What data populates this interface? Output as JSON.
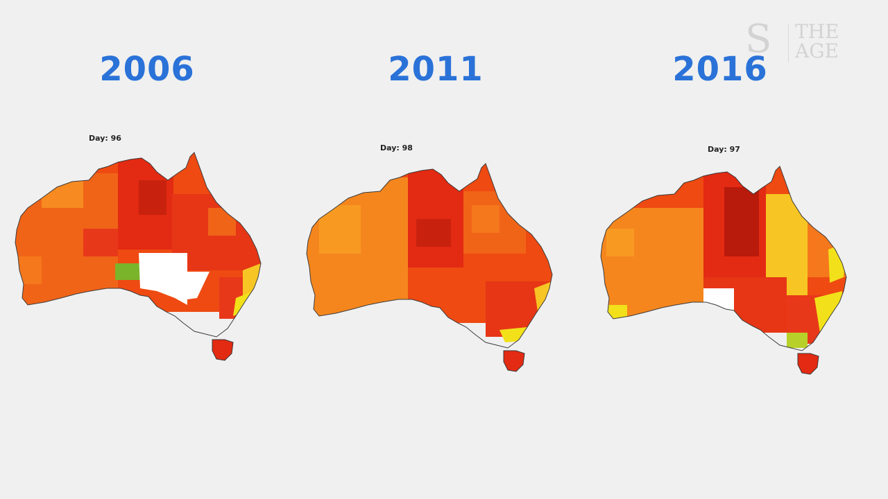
{
  "logo": {
    "mark": "S",
    "text": "THE AGE"
  },
  "panels": [
    {
      "year": "2006",
      "day_label": "Day: 96"
    },
    {
      "year": "2011",
      "day_label": "Day: 98"
    },
    {
      "year": "2016",
      "day_label": "Day: 97"
    }
  ],
  "colors": {
    "deep_red": "#b81a0c",
    "red": "#e32a12",
    "red_orange": "#ee4a12",
    "orange": "#f5781c",
    "light_orange": "#f89a22",
    "yellow": "#f2e11a",
    "yellow_orange": "#f7c624",
    "green": "#7ab42a",
    "no_data": "#ffffff",
    "title_blue": "#2a72d8"
  }
}
